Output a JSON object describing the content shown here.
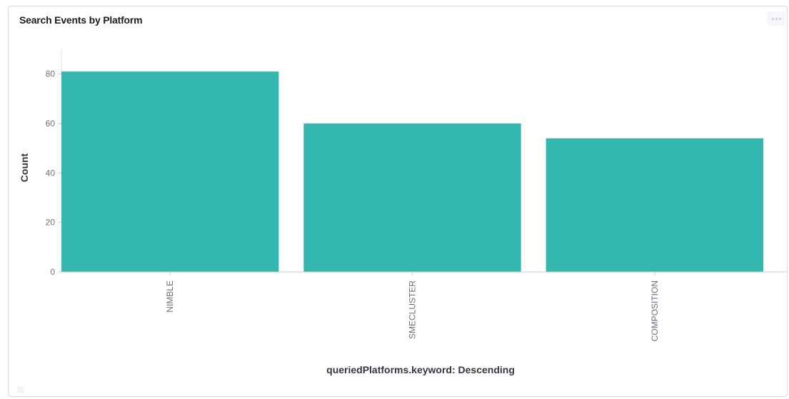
{
  "panel": {
    "title": "Search Events by Platform",
    "menu_icon": "ellipsis-icon"
  },
  "chart_data": {
    "type": "bar",
    "title": "Search Events by Platform",
    "xlabel": "queriedPlatforms.keyword: Descending",
    "ylabel": "Count",
    "categories": [
      "NIMBLE",
      "SMECLUSTER",
      "COMPOSITION"
    ],
    "values": [
      81,
      60,
      54
    ],
    "y_ticks": [
      0,
      20,
      40,
      60,
      80
    ],
    "ylim": [
      0,
      90
    ],
    "bar_color": "#34b7ae",
    "grid": false,
    "legend": "none"
  }
}
